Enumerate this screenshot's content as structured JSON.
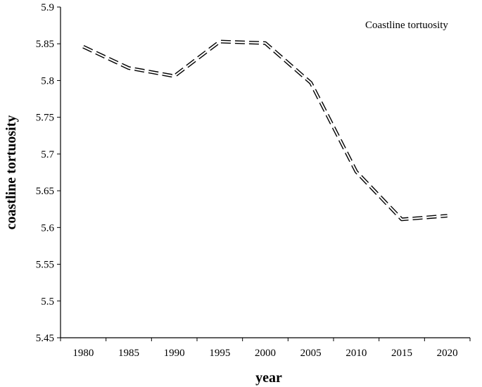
{
  "chart_data": {
    "type": "line",
    "title": "",
    "xlabel": "year",
    "ylabel": "coastline tortuosity",
    "x": [
      1980,
      1985,
      1990,
      1995,
      2000,
      2005,
      2010,
      2015,
      2020
    ],
    "series": [
      {
        "name": "Coastline tortuosity",
        "values": [
          5.846,
          5.817,
          5.806,
          5.853,
          5.851,
          5.797,
          5.676,
          5.611,
          5.616
        ]
      }
    ],
    "ylim": [
      5.45,
      5.9
    ],
    "yticks": [
      "5.45",
      "5.5",
      "5.55",
      "5.6",
      "5.65",
      "5.7",
      "5.75",
      "5.8",
      "5.85",
      "5.9"
    ],
    "xticks": [
      "1980",
      "1985",
      "1990",
      "1995",
      "2000",
      "2005",
      "2010",
      "2015",
      "2020"
    ],
    "grid": false,
    "legend_position": "top-right",
    "line_style": "dashed",
    "line_color": "#000000"
  }
}
